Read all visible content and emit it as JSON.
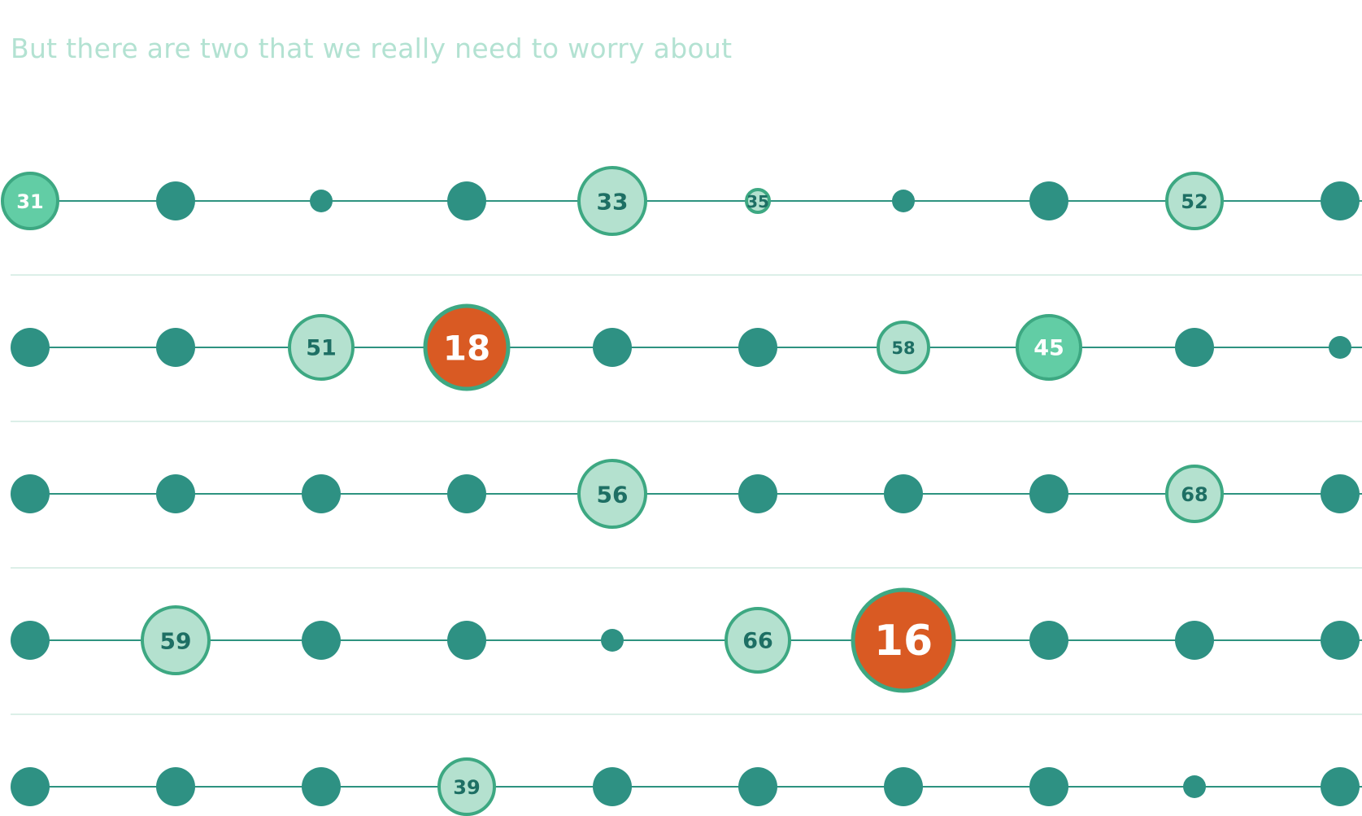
{
  "headline": "But there are two that we really need to worry about",
  "colors": {
    "headline": "#b3e2d2",
    "connector": "#2e9380",
    "divider": "#dcefe8",
    "plain_node": "#2e9183",
    "labeled_fill": "#b4e1cf",
    "labeled_stroke": "#3da882",
    "labeled_text": "#1e6f64",
    "bright_fill": "#62cda5",
    "bright_text": "#ffffff",
    "alert_fill": "#d95a23",
    "alert_stroke": "#3da882",
    "alert_text": "#ffffff"
  },
  "rows": [
    {
      "nodes": [
        {
          "kind": "bright",
          "label": "31",
          "size": "md"
        },
        {
          "kind": "plain",
          "size": "lg"
        },
        {
          "kind": "plain",
          "size": "sm"
        },
        {
          "kind": "plain",
          "size": "lg"
        },
        {
          "kind": "labeled",
          "label": "33",
          "size": "xl"
        },
        {
          "kind": "labeled",
          "label": "35",
          "size": "sm"
        },
        {
          "kind": "plain",
          "size": "sm"
        },
        {
          "kind": "plain",
          "size": "lg"
        },
        {
          "kind": "labeled",
          "label": "52",
          "size": "md"
        },
        {
          "kind": "plain",
          "size": "lg"
        }
      ]
    },
    {
      "nodes": [
        {
          "kind": "plain",
          "size": "lg"
        },
        {
          "kind": "plain",
          "size": "lg"
        },
        {
          "kind": "labeled",
          "label": "51",
          "size": "lg2"
        },
        {
          "kind": "alert",
          "label": "18",
          "size": "xxl"
        },
        {
          "kind": "plain",
          "size": "lg"
        },
        {
          "kind": "plain",
          "size": "lg"
        },
        {
          "kind": "labeled",
          "label": "58",
          "size": "md2"
        },
        {
          "kind": "bright",
          "label": "45",
          "size": "lg2"
        },
        {
          "kind": "plain",
          "size": "lg"
        },
        {
          "kind": "plain",
          "size": "sm"
        }
      ]
    },
    {
      "nodes": [
        {
          "kind": "plain",
          "size": "lg"
        },
        {
          "kind": "plain",
          "size": "lg"
        },
        {
          "kind": "plain",
          "size": "lg"
        },
        {
          "kind": "plain",
          "size": "lg"
        },
        {
          "kind": "labeled",
          "label": "56",
          "size": "xl"
        },
        {
          "kind": "plain",
          "size": "lg"
        },
        {
          "kind": "plain",
          "size": "lg"
        },
        {
          "kind": "plain",
          "size": "lg"
        },
        {
          "kind": "labeled",
          "label": "68",
          "size": "md"
        },
        {
          "kind": "plain",
          "size": "lg"
        }
      ]
    },
    {
      "nodes": [
        {
          "kind": "plain",
          "size": "lg"
        },
        {
          "kind": "labeled",
          "label": "59",
          "size": "xl"
        },
        {
          "kind": "plain",
          "size": "lg"
        },
        {
          "kind": "plain",
          "size": "lg"
        },
        {
          "kind": "plain",
          "size": "sm"
        },
        {
          "kind": "labeled",
          "label": "66",
          "size": "lg2"
        },
        {
          "kind": "alert",
          "label": "16",
          "size": "xxxl"
        },
        {
          "kind": "plain",
          "size": "lg"
        },
        {
          "kind": "plain",
          "size": "lg"
        },
        {
          "kind": "plain",
          "size": "lg"
        }
      ]
    },
    {
      "nodes": [
        {
          "kind": "plain",
          "size": "lg"
        },
        {
          "kind": "plain",
          "size": "lg"
        },
        {
          "kind": "plain",
          "size": "lg"
        },
        {
          "kind": "labeled",
          "label": "39",
          "size": "md"
        },
        {
          "kind": "plain",
          "size": "lg"
        },
        {
          "kind": "plain",
          "size": "lg"
        },
        {
          "kind": "plain",
          "size": "lg"
        },
        {
          "kind": "plain",
          "size": "lg"
        },
        {
          "kind": "plain",
          "size": "sm"
        },
        {
          "kind": "plain",
          "size": "lg"
        }
      ]
    }
  ]
}
